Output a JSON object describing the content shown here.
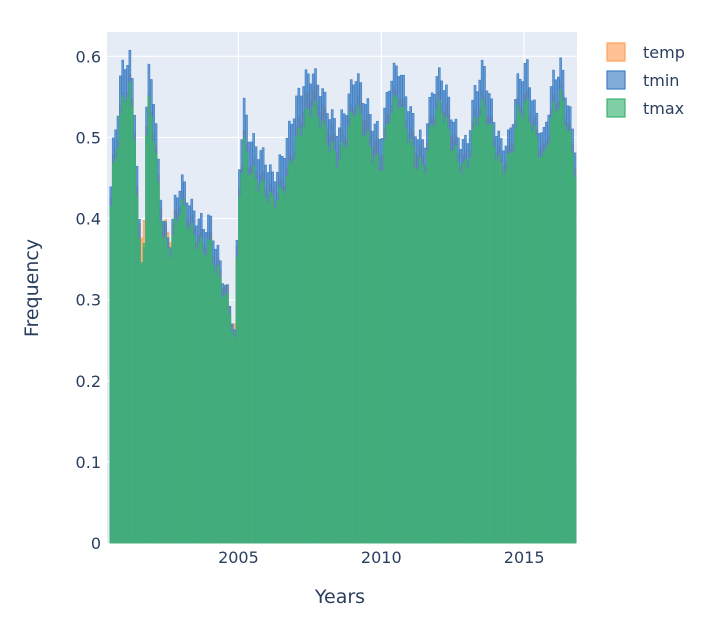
{
  "chart_data": {
    "type": "bar",
    "title": "",
    "xlabel": "Years",
    "ylabel": "Frequency",
    "xlim": [
      2000.4,
      2016.85
    ],
    "ylim": [
      0,
      0.63
    ],
    "grid": true,
    "legend_position": "top-right",
    "barmode": "overlay",
    "x_ticks": [
      2005,
      2010,
      2015
    ],
    "y_ticks": [
      0,
      0.1,
      0.2,
      0.3,
      0.4,
      0.5,
      0.6
    ],
    "x_tick_labels": [
      "2005",
      "2010",
      "2015"
    ],
    "y_tick_labels": [
      "0",
      "0.1",
      "0.2",
      "0.3",
      "0.4",
      "0.5",
      "0.6"
    ],
    "bin_width_years": 0.0833,
    "x_start": 2000.5,
    "series": [
      {
        "name": "temp",
        "color": "#FFA15A",
        "x_anchor": [
          2000.5,
          2000.6,
          2000.8,
          2000.9,
          2001.0,
          2001.2,
          2001.4,
          2001.5,
          2001.6,
          2001.7,
          2001.8,
          2001.9,
          2002.0,
          2002.2,
          2002.4,
          2002.6,
          2002.8,
          2003.0,
          2003.2,
          2003.4,
          2003.6,
          2003.8,
          2004.0,
          2004.2,
          2004.4,
          2004.6,
          2004.8,
          2004.9,
          2005.0,
          2005.2,
          2005.4,
          2005.6,
          2005.8,
          2006.0,
          2006.2,
          2006.5,
          2006.8,
          2007.0,
          2007.3,
          2007.6,
          2007.9,
          2008.2,
          2008.5,
          2008.8,
          2009.1,
          2009.4,
          2009.7,
          2010.0,
          2010.3,
          2010.6,
          2010.9,
          2011.2,
          2011.5,
          2011.8,
          2012.1,
          2012.4,
          2012.7,
          2013.0,
          2013.3,
          2013.6,
          2013.9,
          2014.2,
          2014.5,
          2014.8,
          2015.1,
          2015.4,
          2015.7,
          2016.0,
          2016.3,
          2016.6,
          2016.8
        ],
        "y_anchor": [
          0.4,
          0.46,
          0.51,
          0.54,
          0.55,
          0.57,
          0.51,
          0.39,
          0.37,
          0.4,
          0.52,
          0.55,
          0.53,
          0.45,
          0.39,
          0.38,
          0.4,
          0.43,
          0.41,
          0.39,
          0.38,
          0.37,
          0.38,
          0.35,
          0.33,
          0.31,
          0.28,
          0.26,
          0.43,
          0.5,
          0.47,
          0.46,
          0.45,
          0.44,
          0.43,
          0.44,
          0.47,
          0.5,
          0.54,
          0.56,
          0.54,
          0.51,
          0.49,
          0.51,
          0.55,
          0.53,
          0.5,
          0.48,
          0.54,
          0.56,
          0.52,
          0.49,
          0.47,
          0.53,
          0.55,
          0.52,
          0.48,
          0.47,
          0.53,
          0.55,
          0.51,
          0.47,
          0.48,
          0.54,
          0.55,
          0.51,
          0.48,
          0.54,
          0.56,
          0.51,
          0.47
        ]
      },
      {
        "name": "tmin",
        "color": "#3D7FC4",
        "x_anchor": [
          2000.5,
          2000.6,
          2000.8,
          2000.9,
          2001.0,
          2001.2,
          2001.4,
          2001.5,
          2001.6,
          2001.7,
          2001.8,
          2001.9,
          2002.0,
          2002.2,
          2002.4,
          2002.6,
          2002.8,
          2003.0,
          2003.2,
          2003.4,
          2003.6,
          2003.8,
          2004.0,
          2004.2,
          2004.4,
          2004.6,
          2004.8,
          2004.9,
          2005.0,
          2005.2,
          2005.4,
          2005.6,
          2005.8,
          2006.0,
          2006.2,
          2006.5,
          2006.8,
          2007.0,
          2007.3,
          2007.6,
          2007.9,
          2008.2,
          2008.5,
          2008.8,
          2009.1,
          2009.4,
          2009.7,
          2010.0,
          2010.3,
          2010.6,
          2010.9,
          2011.2,
          2011.5,
          2011.8,
          2012.1,
          2012.4,
          2012.7,
          2013.0,
          2013.3,
          2013.6,
          2013.9,
          2014.2,
          2014.5,
          2014.8,
          2015.1,
          2015.4,
          2015.7,
          2016.0,
          2016.3,
          2016.6,
          2016.8
        ],
        "y_anchor": [
          0.41,
          0.48,
          0.54,
          0.58,
          0.59,
          0.6,
          0.53,
          0.42,
          0.34,
          0.36,
          0.55,
          0.59,
          0.57,
          0.47,
          0.39,
          0.37,
          0.42,
          0.45,
          0.43,
          0.41,
          0.4,
          0.39,
          0.4,
          0.37,
          0.34,
          0.31,
          0.28,
          0.25,
          0.45,
          0.54,
          0.5,
          0.49,
          0.48,
          0.47,
          0.45,
          0.47,
          0.51,
          0.54,
          0.57,
          0.58,
          0.56,
          0.53,
          0.51,
          0.54,
          0.58,
          0.55,
          0.52,
          0.5,
          0.57,
          0.59,
          0.55,
          0.51,
          0.49,
          0.56,
          0.58,
          0.54,
          0.5,
          0.49,
          0.56,
          0.59,
          0.53,
          0.49,
          0.5,
          0.57,
          0.59,
          0.53,
          0.5,
          0.57,
          0.59,
          0.53,
          0.49
        ]
      },
      {
        "name": "tmax",
        "color": "#3CB371",
        "x_anchor": [
          2000.5,
          2000.6,
          2000.8,
          2000.9,
          2001.0,
          2001.2,
          2001.4,
          2001.5,
          2001.6,
          2001.7,
          2001.8,
          2001.9,
          2002.0,
          2002.2,
          2002.4,
          2002.6,
          2002.8,
          2003.0,
          2003.2,
          2003.4,
          2003.6,
          2003.8,
          2004.0,
          2004.2,
          2004.4,
          2004.6,
          2004.8,
          2004.9,
          2005.0,
          2005.2,
          2005.4,
          2005.6,
          2005.8,
          2006.0,
          2006.2,
          2006.5,
          2006.8,
          2007.0,
          2007.3,
          2007.6,
          2007.9,
          2008.2,
          2008.5,
          2008.8,
          2009.1,
          2009.4,
          2009.7,
          2010.0,
          2010.3,
          2010.6,
          2010.9,
          2011.2,
          2011.5,
          2011.8,
          2012.1,
          2012.4,
          2012.7,
          2013.0,
          2013.3,
          2013.6,
          2013.9,
          2014.2,
          2014.5,
          2014.8,
          2015.1,
          2015.4,
          2015.7,
          2016.0,
          2016.3,
          2016.6,
          2016.8
        ],
        "y_anchor": [
          0.39,
          0.45,
          0.5,
          0.53,
          0.55,
          0.56,
          0.5,
          0.38,
          0.34,
          0.37,
          0.51,
          0.55,
          0.52,
          0.44,
          0.37,
          0.36,
          0.39,
          0.42,
          0.4,
          0.38,
          0.37,
          0.36,
          0.37,
          0.34,
          0.32,
          0.3,
          0.27,
          0.24,
          0.42,
          0.49,
          0.46,
          0.45,
          0.44,
          0.43,
          0.42,
          0.43,
          0.46,
          0.49,
          0.52,
          0.54,
          0.52,
          0.49,
          0.47,
          0.5,
          0.54,
          0.51,
          0.48,
          0.46,
          0.53,
          0.55,
          0.51,
          0.47,
          0.46,
          0.52,
          0.54,
          0.5,
          0.47,
          0.46,
          0.52,
          0.54,
          0.5,
          0.46,
          0.47,
          0.53,
          0.54,
          0.5,
          0.47,
          0.53,
          0.55,
          0.5,
          0.46
        ]
      }
    ]
  }
}
